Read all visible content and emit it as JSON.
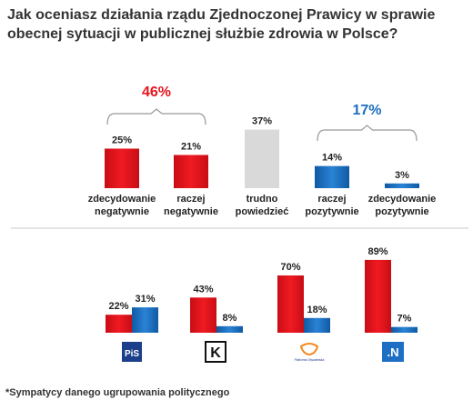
{
  "title": "Jak oceniasz działania rządu Zjednoczonej Prawicy w sprawie obecnej sytuacji w publicznej służbie zdrowia w Polsce?",
  "footnote": "*Sympatycy danego ugrupowania politycznego",
  "colors": {
    "negative": "#e8141d",
    "positive": "#1a6fbf",
    "neutral": "#d9d9d9",
    "negative_total": "#e8141d",
    "positive_total": "#1a6fbf",
    "divider": "#c8c8c8",
    "bracket": "#999999"
  },
  "chart_data": [
    {
      "type": "bar",
      "categories": [
        "zdecydowanie negatywnie",
        "raczej negatywnie",
        "trudno powiedzieć",
        "raczej pozytywnie",
        "zdecydowanie pozytywnie"
      ],
      "category_lines": [
        [
          "zdecydowanie",
          "negatywnie"
        ],
        [
          "raczej",
          "negatywnie"
        ],
        [
          "trudno",
          "powiedzieć"
        ],
        [
          "raczej",
          "pozytywnie"
        ],
        [
          "zdecydowanie",
          "pozytywnie"
        ]
      ],
      "values": [
        25,
        21,
        37,
        14,
        3
      ],
      "value_labels": [
        "25%",
        "21%",
        "37%",
        "14%",
        "3%"
      ],
      "groups": [
        {
          "label": "46%",
          "value": 46,
          "members": [
            0,
            1
          ],
          "color": "negative"
        },
        {
          "label": "17%",
          "value": 17,
          "members": [
            3,
            4
          ],
          "color": "positive"
        }
      ],
      "bar_colors": [
        "negative",
        "negative",
        "neutral",
        "positive",
        "positive"
      ]
    },
    {
      "type": "bar",
      "categories": [
        "PiS",
        "Kukiz'15",
        "Platforma Obywatelska",
        "Nowoczesna"
      ],
      "category_logos": [
        "pis-logo",
        "kukiz-logo",
        "po-logo",
        "nowoczesna-logo"
      ],
      "logo_texts": [
        "PiS",
        "K",
        "Platforma Obywatelska",
        ".N"
      ],
      "series": [
        {
          "values": [
            22,
            43,
            70,
            89
          ],
          "value_labels": [
            "22%",
            "43%",
            "70%",
            "89%"
          ],
          "color": "negative"
        },
        {
          "values": [
            31,
            8,
            18,
            7
          ],
          "value_labels": [
            "31%",
            "8%",
            "18%",
            "7%"
          ],
          "color": "positive"
        }
      ]
    }
  ]
}
